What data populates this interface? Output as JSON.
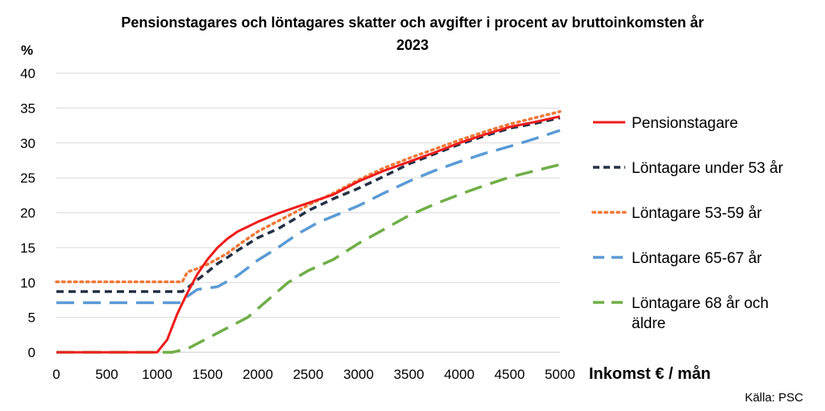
{
  "chart_data": {
    "type": "line",
    "title_line1": "Pensionstagares och löntagares skatter och avgifter i procent av bruttoinkomsten år",
    "title_line2": "2023",
    "ylabel": "%",
    "xlabel": "Inkomst € / mån",
    "source": "Källa: PSC",
    "xlim": [
      0,
      5000
    ],
    "ylim": [
      0,
      40
    ],
    "xticks": [
      "0",
      "500",
      "1000",
      "1500",
      "2000",
      "2500",
      "3000",
      "3500",
      "4000",
      "4500",
      "5000"
    ],
    "yticks": [
      "0",
      "5",
      "10",
      "15",
      "20",
      "25",
      "30",
      "35",
      "40"
    ],
    "grid": "horizontal",
    "legend_position": "right",
    "series": [
      {
        "name": "Pensionstagare",
        "color": "#ee1c1c",
        "style": "solid",
        "points": [
          [
            0,
            0
          ],
          [
            1000,
            0
          ],
          [
            1100,
            1.8
          ],
          [
            1200,
            5.5
          ],
          [
            1300,
            8.5
          ],
          [
            1400,
            11.2
          ],
          [
            1500,
            13.3
          ],
          [
            1600,
            15
          ],
          [
            1700,
            16.3
          ],
          [
            1800,
            17.3
          ],
          [
            1900,
            18
          ],
          [
            2000,
            18.7
          ],
          [
            2100,
            19.3
          ],
          [
            2200,
            19.9
          ],
          [
            2300,
            20.4
          ],
          [
            2400,
            20.9
          ],
          [
            2500,
            21.4
          ],
          [
            2750,
            22.6
          ],
          [
            3000,
            24.5
          ],
          [
            3250,
            26
          ],
          [
            3500,
            27.3
          ],
          [
            3750,
            28.6
          ],
          [
            4000,
            30
          ],
          [
            4250,
            31.2
          ],
          [
            4500,
            32.3
          ],
          [
            4750,
            33
          ],
          [
            5000,
            33.8
          ]
        ]
      },
      {
        "name": "Löntagare under 53 år",
        "color": "#243145",
        "style": "dashed",
        "points": [
          [
            0,
            8.7
          ],
          [
            1250,
            8.7
          ],
          [
            1300,
            9.2
          ],
          [
            1400,
            10.4
          ],
          [
            1500,
            11.5
          ],
          [
            1600,
            12.7
          ],
          [
            1700,
            13.6
          ],
          [
            1800,
            14.6
          ],
          [
            1900,
            15.5
          ],
          [
            2000,
            16.4
          ],
          [
            2200,
            17.7
          ],
          [
            2400,
            19.4
          ],
          [
            2500,
            20.3
          ],
          [
            2750,
            22
          ],
          [
            3000,
            23.5
          ],
          [
            3250,
            25.2
          ],
          [
            3500,
            27
          ],
          [
            3750,
            28.4
          ],
          [
            4000,
            29.8
          ],
          [
            4250,
            31
          ],
          [
            4500,
            32.1
          ],
          [
            4750,
            32.8
          ],
          [
            5000,
            33.6
          ]
        ]
      },
      {
        "name": "Löntagare 53-59 år",
        "color": "#f07837",
        "style": "dotted",
        "points": [
          [
            0,
            10.1
          ],
          [
            1250,
            10.1
          ],
          [
            1300,
            11.5
          ],
          [
            1400,
            12
          ],
          [
            1500,
            12.6
          ],
          [
            1600,
            13.4
          ],
          [
            1700,
            14.2
          ],
          [
            1800,
            15.3
          ],
          [
            1900,
            16.3
          ],
          [
            2000,
            17.3
          ],
          [
            2200,
            18.8
          ],
          [
            2400,
            20.3
          ],
          [
            2500,
            21.1
          ],
          [
            2750,
            22.8
          ],
          [
            3000,
            24.7
          ],
          [
            3250,
            26.4
          ],
          [
            3500,
            27.8
          ],
          [
            3750,
            29.1
          ],
          [
            4000,
            30.4
          ],
          [
            4250,
            31.6
          ],
          [
            4500,
            32.7
          ],
          [
            4750,
            33.6
          ],
          [
            5000,
            34.5
          ]
        ]
      },
      {
        "name": "Löntagare 65-67 år",
        "color": "#5a9bd5",
        "style": "longdash",
        "points": [
          [
            0,
            7.1
          ],
          [
            1250,
            7.1
          ],
          [
            1300,
            8
          ],
          [
            1400,
            9
          ],
          [
            1500,
            9.2
          ],
          [
            1600,
            9.4
          ],
          [
            1800,
            11
          ],
          [
            2000,
            13.2
          ],
          [
            2200,
            15
          ],
          [
            2400,
            17
          ],
          [
            2600,
            18.6
          ],
          [
            2800,
            19.8
          ],
          [
            3000,
            21
          ],
          [
            3250,
            22.8
          ],
          [
            3500,
            24.5
          ],
          [
            3750,
            26
          ],
          [
            4000,
            27.3
          ],
          [
            4250,
            28.5
          ],
          [
            4500,
            29.5
          ],
          [
            4750,
            30.6
          ],
          [
            5000,
            31.8
          ]
        ]
      },
      {
        "name": "Löntagare 68 år och äldre",
        "color": "#6faf47",
        "style": "longdash",
        "points": [
          [
            0,
            0
          ],
          [
            1150,
            0
          ],
          [
            1300,
            0.5
          ],
          [
            1500,
            2
          ],
          [
            1700,
            3.5
          ],
          [
            1900,
            5
          ],
          [
            2100,
            7.5
          ],
          [
            2300,
            10
          ],
          [
            2500,
            11.7
          ],
          [
            2750,
            13.3
          ],
          [
            3000,
            15.6
          ],
          [
            3250,
            17.6
          ],
          [
            3500,
            19.6
          ],
          [
            3750,
            21.2
          ],
          [
            4000,
            22.6
          ],
          [
            4250,
            23.9
          ],
          [
            4500,
            25.1
          ],
          [
            4750,
            26
          ],
          [
            5000,
            26.9
          ]
        ]
      }
    ]
  }
}
